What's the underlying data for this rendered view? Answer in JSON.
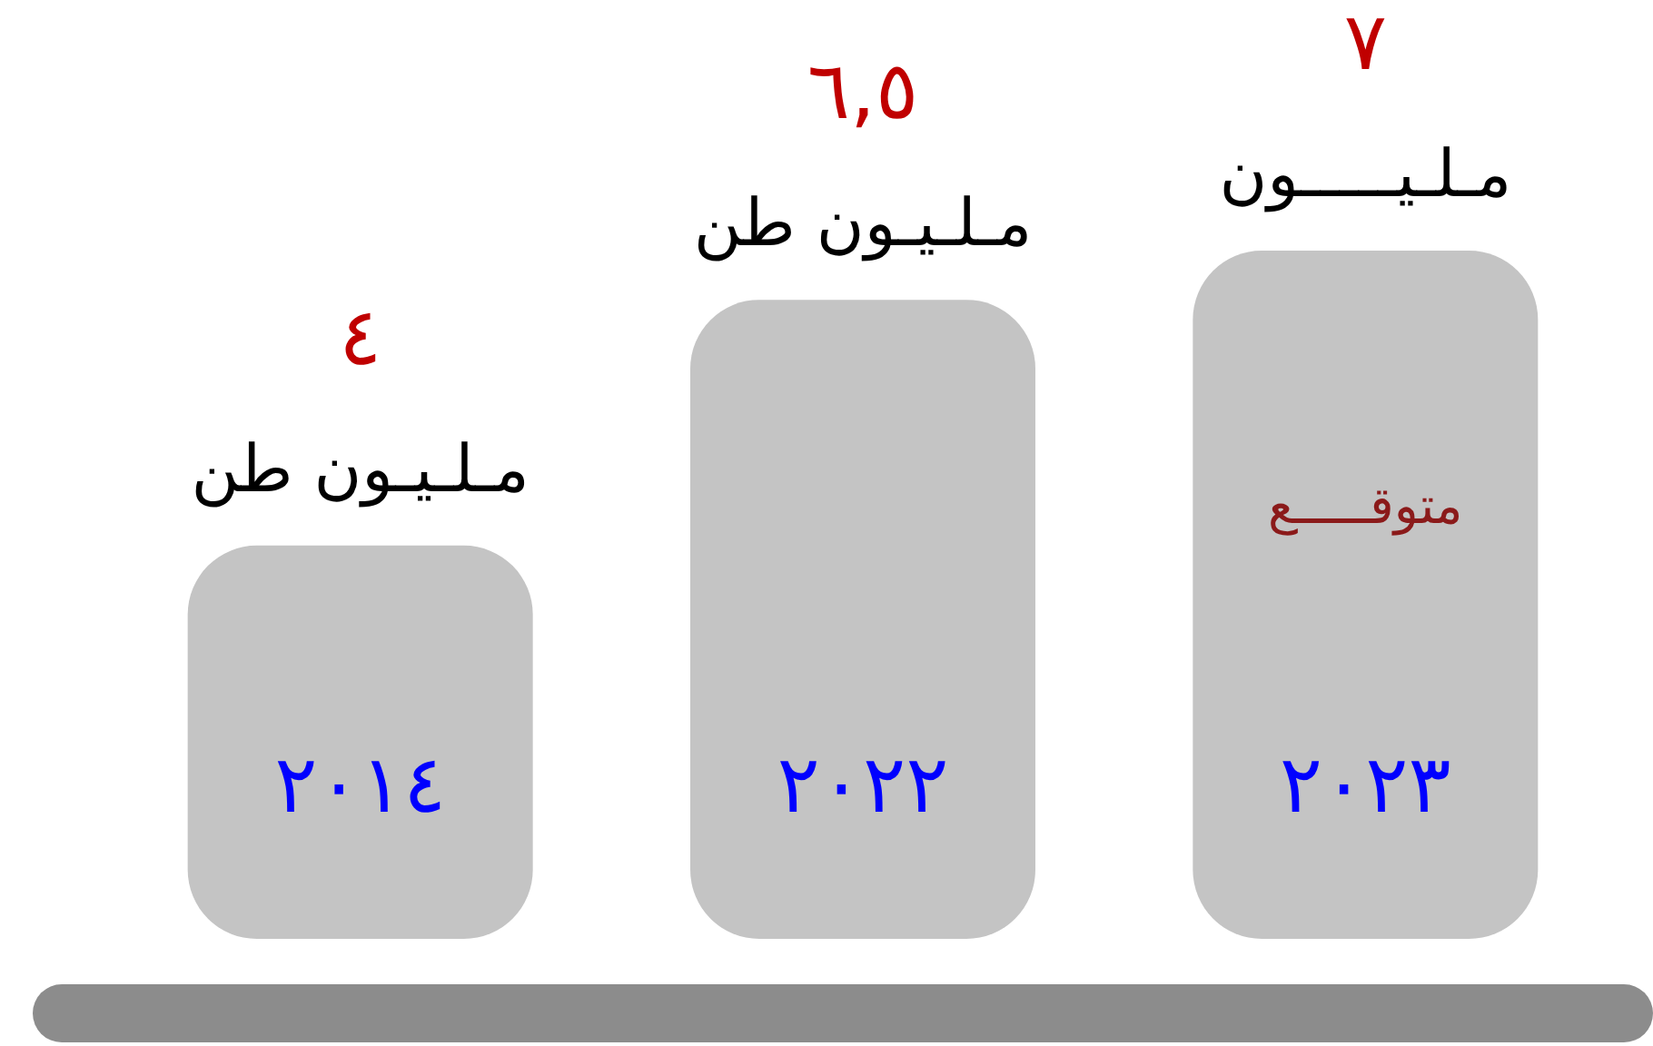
{
  "chart_data": {
    "type": "bar",
    "categories": [
      "٢٠١٤",
      "٢٠٢٢",
      "٢٠٢٣"
    ],
    "values": [
      4,
      6.5,
      7
    ],
    "value_labels": [
      "٤",
      "٦,٥",
      "٧"
    ],
    "color": "#c4c4c4",
    "annotations": [
      "مـلـيـون طن",
      "مـلـيـون طن",
      "مـلـيـــــون",
      "متوقـــــع"
    ]
  }
}
